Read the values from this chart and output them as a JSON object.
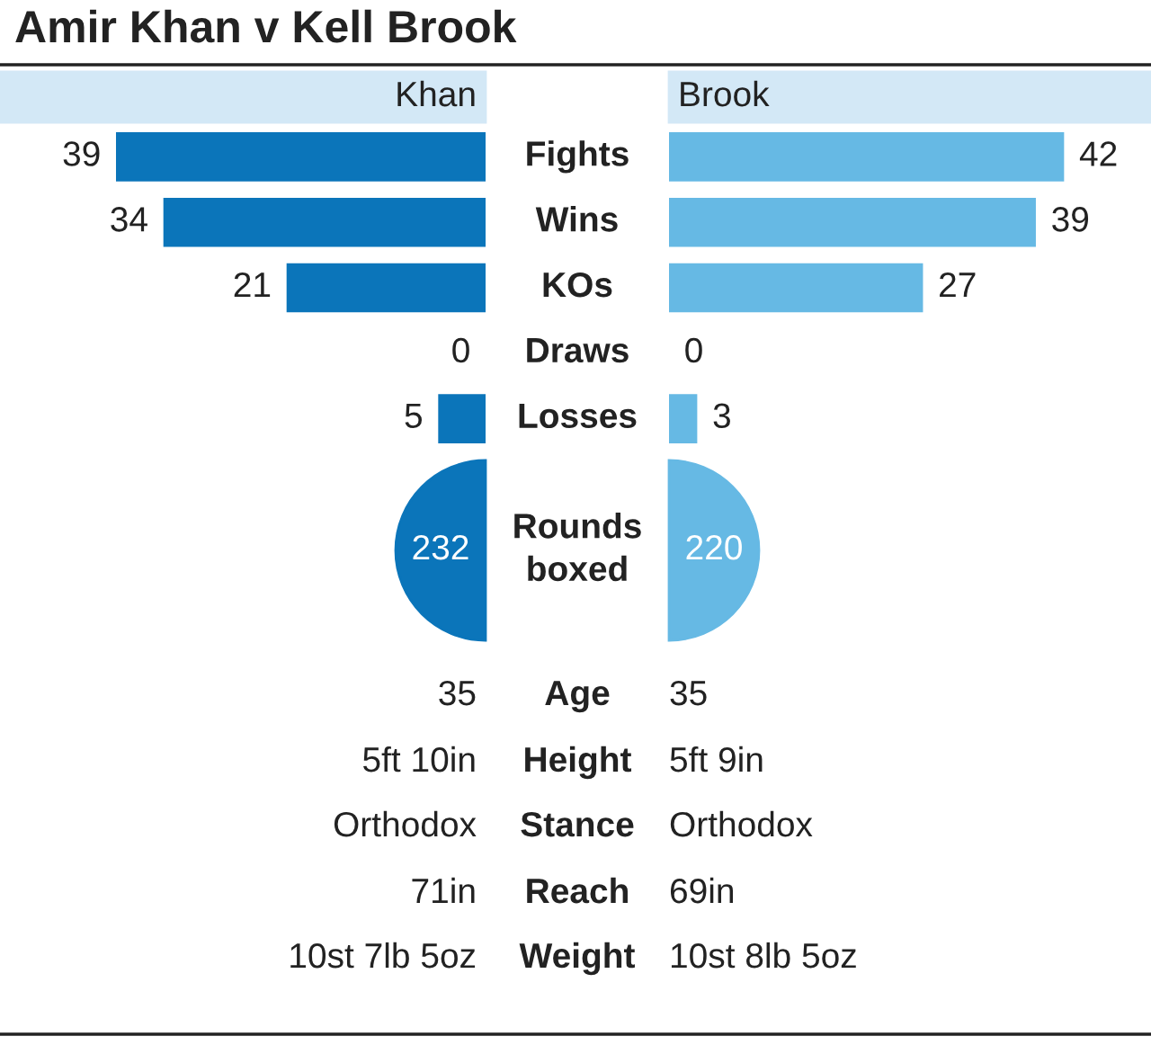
{
  "chart_data": [
    {
      "type": "bar",
      "title": "Amir Khan v Kell Brook",
      "orientation": "horizontal",
      "categories": [
        "Fights",
        "Wins",
        "KOs",
        "Draws",
        "Losses"
      ],
      "tick_labels": false,
      "data_labels": true,
      "legend": "top",
      "series": [
        {
          "name": "Khan",
          "color": "#0b75ba",
          "values": [
            39,
            34,
            21,
            0,
            5
          ]
        }
      ]
    },
    {
      "type": "bar",
      "orientation": "horizontal",
      "categories": [
        null,
        null,
        null,
        null,
        null
      ],
      "tick_labels": false,
      "data_labels": true,
      "legend": "top",
      "series": [
        {
          "name": "Brook",
          "color": "#66b9e4",
          "values": [
            42,
            39,
            27,
            0,
            3
          ]
        }
      ]
    },
    {
      "type": "other",
      "annotations": [
        "232",
        "Rounds\nboxed",
        "220",
        "35",
        "Age",
        "35",
        "5ft 10in",
        "Height",
        "5ft 9in",
        "Orthodox",
        "Stance",
        "Orthodox",
        "71in",
        "Reach",
        "69in",
        "10st 7lb 5oz",
        "Weight",
        "10st 8lb 5oz"
      ]
    }
  ]
}
